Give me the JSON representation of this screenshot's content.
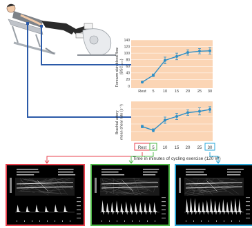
{
  "chart_data": [
    {
      "type": "line",
      "ylabel": "Forearm skin blood flow (BSC_rest)",
      "ylabel_line1": "Forearm skin blood flow",
      "ylabel_line2": "(BSC,ᵣₑₛₜ)",
      "x": [
        "Rest",
        "5",
        "10",
        "15",
        "20",
        "25",
        "30"
      ],
      "values": [
        12,
        33,
        78,
        90,
        102,
        106,
        107
      ],
      "errors": [
        2,
        4,
        10,
        10,
        8,
        8,
        10
      ],
      "ylim": [
        0,
        140
      ],
      "yticks": [
        "0",
        "20",
        "40",
        "60",
        "80",
        "100",
        "120",
        "140"
      ],
      "grid": true
    },
    {
      "type": "line",
      "ylabel": "Brachial artery mean shear rate (s⁻¹)",
      "ylabel_line1": "Brachial artery",
      "ylabel_line2": "mean shear rate (s⁻¹)",
      "x": [
        "Rest",
        "5",
        "10",
        "15",
        "20",
        "25",
        "30"
      ],
      "values": [
        100,
        70,
        150,
        180,
        210,
        220,
        235
      ],
      "errors": [
        10,
        12,
        25,
        25,
        22,
        28,
        22
      ],
      "ylim": [
        0,
        300
      ],
      "grid": true
    }
  ],
  "xaxis": {
    "label": "Time in minutes of cycling exercise (120 W)",
    "ticks": [
      "Rest",
      "5",
      "10",
      "15",
      "20",
      "25",
      "30"
    ],
    "highlighted": [
      {
        "label": "Rest",
        "color": "#e8414d"
      },
      {
        "label": "5",
        "color": "#4fb848"
      },
      {
        "label": "30",
        "color": "#2aa7d8"
      }
    ]
  },
  "panels": [
    {
      "name": "ultrasound-rest",
      "color": "#e8414d"
    },
    {
      "name": "ultrasound-5min",
      "color": "#4fb848"
    },
    {
      "name": "ultrasound-30min",
      "color": "#2aa7d8"
    }
  ],
  "colors": {
    "chart_bg": "#fbd5b5",
    "line": "#2e8fc7",
    "connector": "#2b5aa8"
  }
}
